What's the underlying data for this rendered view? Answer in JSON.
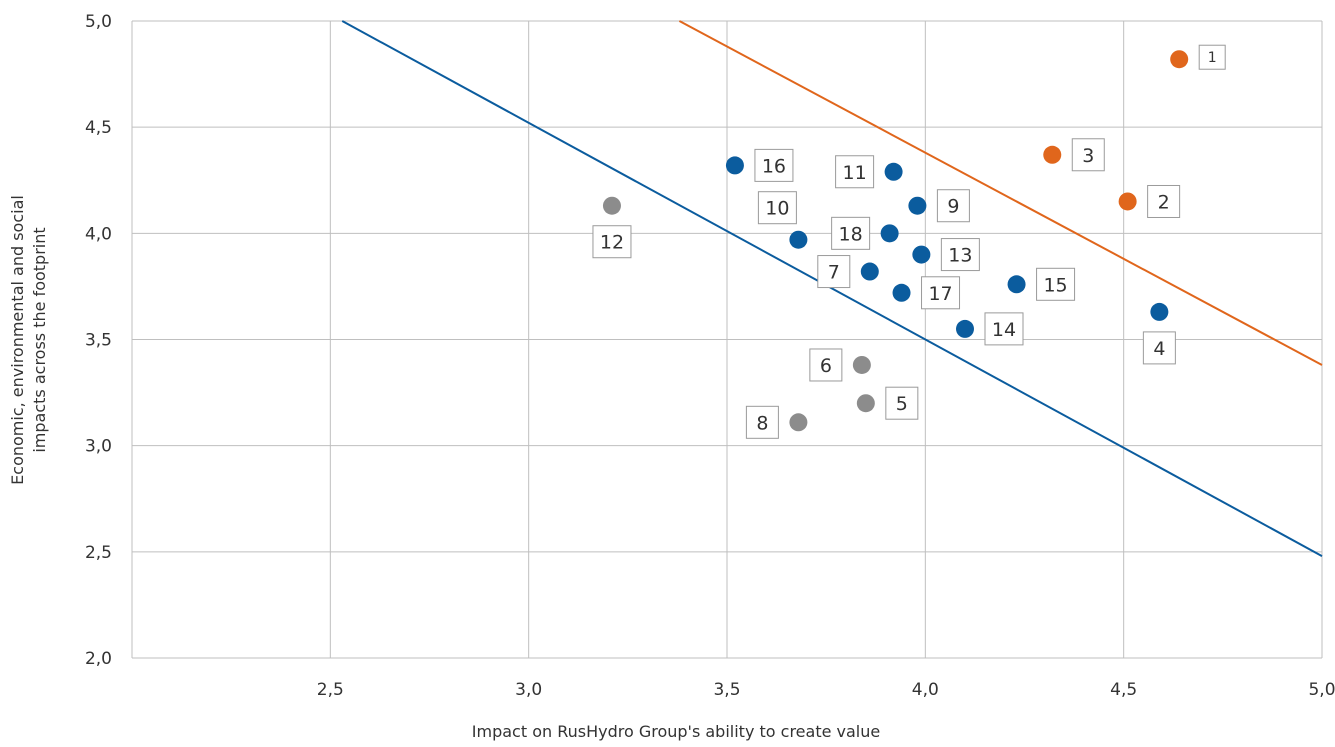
{
  "chart_data": {
    "type": "scatter",
    "xlabel": "Impact on RusHydro Group's ability to create value",
    "ylabel_lines": [
      "Economic, environmental and social",
      "impacts across the footprint"
    ],
    "xlim": [
      2.0,
      5.0
    ],
    "ylim": [
      2.0,
      5.0
    ],
    "x_ticks": [
      "2,5",
      "3,0",
      "3,5",
      "4,0",
      "4,5",
      "5,0"
    ],
    "y_ticks": [
      "2,0",
      "2,5",
      "3,0",
      "3,5",
      "4,0",
      "4,5",
      "5,0"
    ],
    "grid": true,
    "colors": {
      "orange": "#E0661C",
      "blue": "#0B5C9E",
      "grey": "#8C8C8C"
    },
    "points": [
      {
        "label": "1",
        "x": 4.64,
        "y": 4.82,
        "color": "orange",
        "label_side": "right"
      },
      {
        "label": "2",
        "x": 4.51,
        "y": 4.15,
        "color": "orange",
        "label_side": "right"
      },
      {
        "label": "3",
        "x": 4.32,
        "y": 4.37,
        "color": "orange",
        "label_side": "right"
      },
      {
        "label": "4",
        "x": 4.59,
        "y": 3.63,
        "color": "blue",
        "label_side": "below"
      },
      {
        "label": "5",
        "x": 3.85,
        "y": 3.2,
        "color": "grey",
        "label_side": "right"
      },
      {
        "label": "6",
        "x": 3.84,
        "y": 3.38,
        "color": "grey",
        "label_side": "left"
      },
      {
        "label": "7",
        "x": 3.86,
        "y": 3.82,
        "color": "blue",
        "label_side": "left"
      },
      {
        "label": "8",
        "x": 3.68,
        "y": 3.11,
        "color": "grey",
        "label_side": "left"
      },
      {
        "label": "9",
        "x": 3.98,
        "y": 4.13,
        "color": "blue",
        "label_side": "right"
      },
      {
        "label": "10",
        "x": 3.68,
        "y": 3.97,
        "color": "blue",
        "label_side": "above-right"
      },
      {
        "label": "11",
        "x": 3.92,
        "y": 4.29,
        "color": "blue",
        "label_side": "left"
      },
      {
        "label": "12",
        "x": 3.21,
        "y": 4.13,
        "color": "grey",
        "label_side": "below"
      },
      {
        "label": "13",
        "x": 3.99,
        "y": 3.9,
        "color": "blue",
        "label_side": "right"
      },
      {
        "label": "14",
        "x": 4.1,
        "y": 3.55,
        "color": "blue",
        "label_side": "right"
      },
      {
        "label": "15",
        "x": 4.23,
        "y": 3.76,
        "color": "blue",
        "label_side": "right"
      },
      {
        "label": "16",
        "x": 3.52,
        "y": 4.32,
        "color": "blue",
        "label_side": "right"
      },
      {
        "label": "17",
        "x": 3.94,
        "y": 3.72,
        "color": "blue",
        "label_side": "right"
      },
      {
        "label": "18",
        "x": 3.91,
        "y": 4.0,
        "color": "blue",
        "label_side": "left"
      }
    ],
    "threshold_lines": [
      {
        "color": "blue",
        "from": [
          2.53,
          5.0
        ],
        "to": [
          5.0,
          2.48
        ]
      },
      {
        "color": "orange",
        "from": [
          3.38,
          5.0
        ],
        "to": [
          5.0,
          3.38
        ]
      }
    ]
  }
}
